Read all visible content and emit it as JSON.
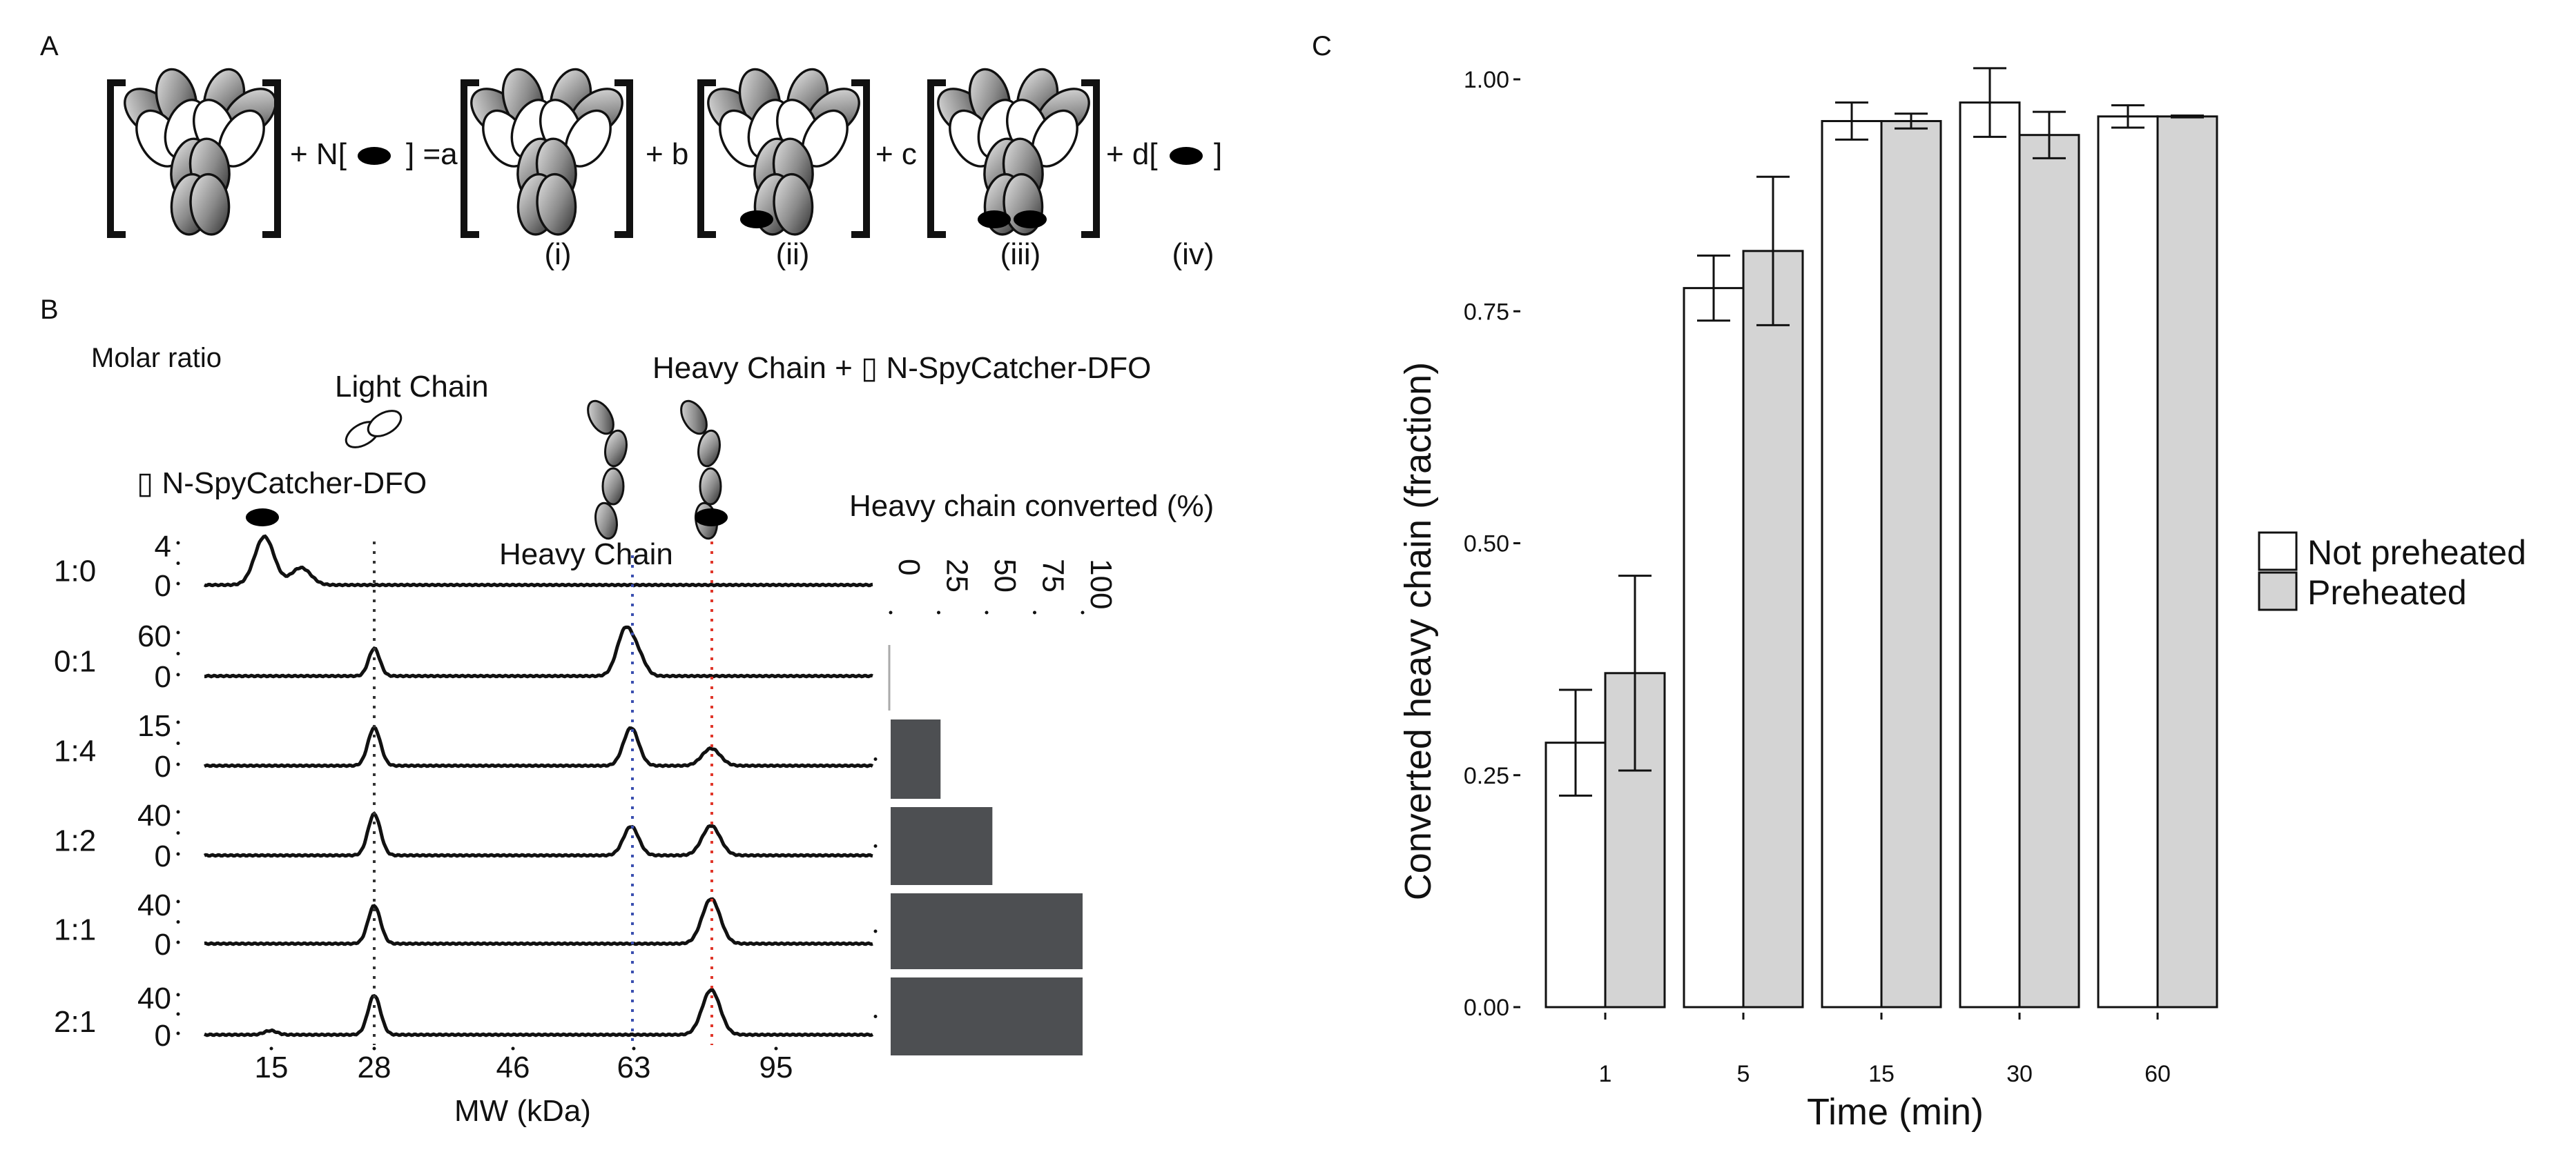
{
  "panels": {
    "a": "A",
    "b": "B",
    "c": "C"
  },
  "reaction": {
    "plus_n": "+ N[",
    "close_eq": "] =a",
    "plus_b": "+ b",
    "plus_c": "+ c",
    "plus_d": "+ d[",
    "close_d": "]",
    "species": [
      "(i)",
      "(ii)",
      "(iii)",
      "(iv)"
    ]
  },
  "panel_b": {
    "molar_ratio_title": "Molar ratio",
    "light_chain_label": "Light Chain",
    "heavy_chain_plus_label": "Heavy Chain + ▯ N-SpyCatcher-DFO",
    "spycatcher_label": "▯ N-SpyCatcher-DFO",
    "heavy_chain_label": "Heavy Chain",
    "xlabel": "MW (kDa)",
    "xticks": [
      "15",
      "28",
      "46",
      "63",
      "95"
    ],
    "traces": [
      {
        "ratio": "1:0",
        "ymax": "4",
        "ymin": "0"
      },
      {
        "ratio": "0:1",
        "ymax": "60",
        "ymin": "0"
      },
      {
        "ratio": "1:4",
        "ymax": "15",
        "ymin": "0"
      },
      {
        "ratio": "1:2",
        "ymax": "40",
        "ymin": "0"
      },
      {
        "ratio": "1:1",
        "ymax": "40",
        "ymin": "0"
      },
      {
        "ratio": "2:1",
        "ymax": "40",
        "ymin": "0"
      }
    ],
    "bar_title": "Heavy chain converted (%)",
    "bar_ticks": [
      "0",
      "25",
      "50",
      "75",
      "100"
    ],
    "bar_values": [
      null,
      26,
      53,
      100,
      100
    ],
    "colors": {
      "bar": "#4d4f52",
      "light_line": "#333333",
      "heavy_line": "#3a4fb0",
      "conj_line": "#e0362a"
    }
  },
  "chart_data": {
    "type": "bar",
    "title": "",
    "xlabel": "Time (min)",
    "ylabel": "Converted heavy chain (fraction)",
    "categories": [
      "1",
      "5",
      "15",
      "30",
      "60"
    ],
    "ylim": [
      0,
      1.0
    ],
    "yticks": [
      "0.00",
      "0.25",
      "0.50",
      "0.75",
      "1.00"
    ],
    "legend": [
      "Not preheated",
      "Preheated"
    ],
    "legend_position": "right",
    "series": [
      {
        "name": "Not preheated",
        "color": "#ffffff",
        "values": [
          0.285,
          0.775,
          0.955,
          0.975,
          0.96
        ],
        "err": [
          0.057,
          0.035,
          0.02,
          0.037,
          0.012
        ]
      },
      {
        "name": "Preheated",
        "color": "#d4d4d4",
        "values": [
          0.36,
          0.815,
          0.955,
          0.94,
          0.96
        ],
        "err": [
          0.105,
          0.08,
          0.008,
          0.025,
          0.001
        ]
      }
    ]
  }
}
